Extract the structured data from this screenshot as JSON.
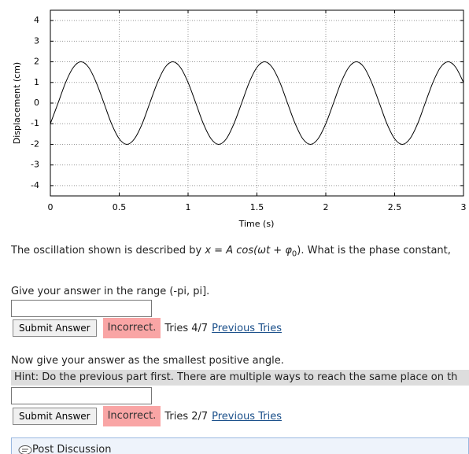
{
  "chart_data": {
    "type": "line",
    "x_label": "Time (s)",
    "y_label": "Displacement (cm)",
    "x": [
      0,
      0.056,
      0.111,
      0.167,
      0.222,
      0.278,
      0.333,
      0.389,
      0.444,
      0.5,
      0.556,
      0.611,
      0.667,
      0.722,
      0.778,
      0.833,
      0.889,
      0.944,
      1,
      1.056,
      1.111,
      1.167,
      1.222,
      1.278,
      1.333,
      1.389,
      1.444,
      1.5,
      1.556,
      1.611,
      1.667,
      1.722,
      1.778,
      1.833,
      1.889,
      1.944,
      2,
      2.056,
      2.111,
      2.167,
      2.222,
      2.278,
      2.333,
      2.389,
      2.444,
      2.5,
      2.556,
      2.611,
      2.667,
      2.722,
      2.778,
      2.833,
      2.889,
      2.944,
      3
    ],
    "values": [
      -1,
      0,
      1,
      1.73,
      2,
      1.73,
      1,
      0,
      -1,
      -1.73,
      -2,
      -1.73,
      -1,
      0,
      1,
      1.73,
      2,
      1.73,
      1,
      0,
      -1,
      -1.73,
      -2,
      -1.73,
      -1,
      0,
      1,
      1.73,
      2,
      1.73,
      1,
      0,
      -1,
      -1.73,
      -2,
      -1.73,
      -1,
      0,
      1,
      1.73,
      2,
      1.73,
      1,
      0,
      -1,
      -1.73,
      -2,
      -1.73,
      -1,
      0,
      1,
      1.73,
      2,
      1.73,
      1
    ],
    "color": "#000000",
    "xlim": [
      0,
      3
    ],
    "xticks": [
      0,
      0.5,
      1,
      1.5,
      2,
      2.5,
      3
    ],
    "ylim": [
      -4.5,
      4.5
    ],
    "yticks": [
      -4,
      -3,
      -2,
      -1,
      0,
      1,
      2,
      3,
      4
    ],
    "grid": true
  },
  "question": {
    "start": "The oscillation shown is described by ",
    "formula": "x = A cos(ωt + φ",
    "formula_sub": "0",
    "end": "). What is the phase constant,"
  },
  "parts": [
    {
      "prompt": "Give your answer in the range (-pi, pi].",
      "button": "Submit Answer",
      "status": "Incorrect.",
      "tries": "Tries 4/7",
      "link": "Previous Tries"
    },
    {
      "prompt": "Now give your answer as the smallest positive angle.",
      "hint": "Hint: Do the previous part first. There are multiple ways to reach the same place on th",
      "button": "Submit Answer",
      "status": "Incorrect.",
      "tries": "Tries 2/7",
      "link": "Previous Tries"
    }
  ],
  "discussion": "Post Discussion"
}
